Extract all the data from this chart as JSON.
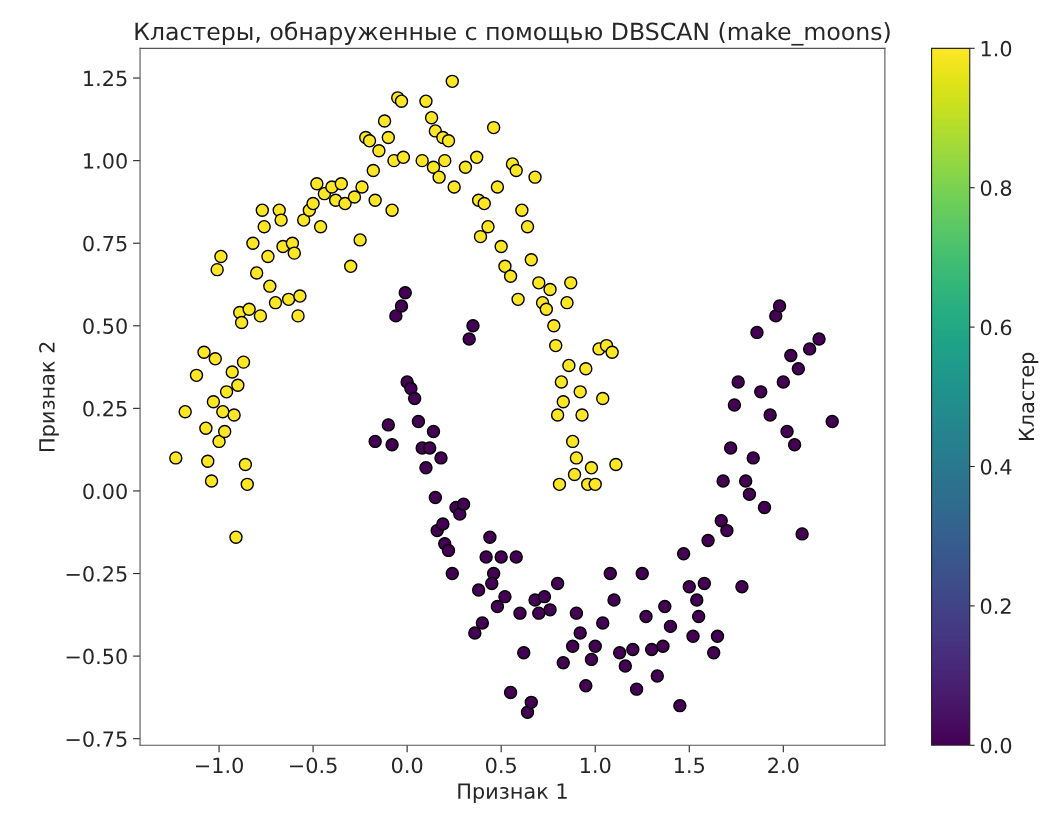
{
  "chart_data": {
    "type": "scatter",
    "title": "Кластеры, обнаруженные с помощью DBSCAN (make_moons)",
    "xlabel": "Признак 1",
    "ylabel": "Признак 2",
    "clabel": "Кластер",
    "xlim": [
      -1.42,
      2.54
    ],
    "ylim": [
      -0.77,
      1.34
    ],
    "xticks": [
      {
        "value": -1.0,
        "label": "−1.0"
      },
      {
        "value": -0.5,
        "label": "−0.5"
      },
      {
        "value": 0.0,
        "label": "0.0"
      },
      {
        "value": 0.5,
        "label": "0.5"
      },
      {
        "value": 1.0,
        "label": "1.0"
      },
      {
        "value": 1.5,
        "label": "1.5"
      },
      {
        "value": 2.0,
        "label": "2.0"
      }
    ],
    "yticks": [
      {
        "value": -0.75,
        "label": "−0.75"
      },
      {
        "value": -0.5,
        "label": "−0.50"
      },
      {
        "value": -0.25,
        "label": "−0.25"
      },
      {
        "value": 0.0,
        "label": "0.00"
      },
      {
        "value": 0.25,
        "label": "0.25"
      },
      {
        "value": 0.5,
        "label": "0.50"
      },
      {
        "value": 0.75,
        "label": "0.75"
      },
      {
        "value": 1.0,
        "label": "1.00"
      },
      {
        "value": 1.25,
        "label": "1.25"
      }
    ],
    "clim": [
      0,
      1
    ],
    "cticks": [
      {
        "value": 0,
        "label": "0.0"
      },
      {
        "value": 0.2,
        "label": "0.2"
      },
      {
        "value": 0.4,
        "label": "0.4"
      },
      {
        "value": 0.6,
        "label": "0.6"
      },
      {
        "value": 0.8,
        "label": "0.8"
      },
      {
        "value": 1,
        "label": "1.0"
      }
    ],
    "marker": "circle",
    "grid": false,
    "series": [
      {
        "x": [
          -1.23,
          -1.18,
          -1.12,
          -1.08,
          -1.07,
          -1.06,
          -1.04,
          -1.03,
          -1.02,
          -1.01,
          -0.99,
          -1.0,
          -0.98,
          -0.97,
          -0.96,
          -0.93,
          -0.92,
          -0.91,
          -0.9,
          -0.89,
          -0.88,
          -0.87,
          -0.86,
          -0.85,
          -0.84,
          -0.82,
          -0.8,
          -0.78,
          -0.77,
          -0.76,
          -0.74,
          -0.73,
          -0.7,
          -0.68,
          -0.67,
          -0.66,
          -0.63,
          -0.61,
          -0.6,
          -0.58,
          -0.57,
          -0.55,
          -0.52,
          -0.5,
          -0.48,
          -0.46,
          -0.44,
          -0.4,
          -0.38,
          -0.35,
          -0.33,
          -0.3,
          -0.28,
          -0.25,
          -0.24,
          -0.22,
          -0.2,
          -0.18,
          -0.17,
          -0.15,
          -0.12,
          -0.1,
          -0.08,
          -0.07,
          -0.05,
          -0.03,
          -0.02,
          0.08,
          0.1,
          0.13,
          0.14,
          0.15,
          0.17,
          0.19,
          0.2,
          0.22,
          0.24,
          0.25,
          0.31,
          0.37,
          0.38,
          0.39,
          0.41,
          0.43,
          0.46,
          0.48,
          0.5,
          0.52,
          0.55,
          0.56,
          0.58,
          0.59,
          0.61,
          0.64,
          0.66,
          0.68,
          0.7,
          0.72,
          0.74,
          0.76,
          0.78,
          0.79,
          0.8,
          0.81,
          0.82,
          0.83,
          0.85,
          0.86,
          0.87,
          0.88,
          0.89,
          0.9,
          0.92,
          0.93,
          0.95,
          0.96,
          0.98,
          1.0,
          1.02,
          1.04,
          1.06,
          1.09,
          1.11
        ],
        "values": [
          0.1,
          0.24,
          0.35,
          0.42,
          0.19,
          0.09,
          0.03,
          0.27,
          0.4,
          0.67,
          0.71,
          0.15,
          0.24,
          0.18,
          0.3,
          0.36,
          0.23,
          -0.14,
          0.32,
          0.54,
          0.51,
          0.39,
          0.08,
          0.02,
          0.55,
          0.75,
          0.66,
          0.53,
          0.85,
          0.8,
          0.71,
          0.62,
          0.57,
          0.85,
          0.82,
          0.74,
          0.58,
          0.75,
          0.72,
          0.53,
          0.59,
          0.82,
          0.85,
          0.87,
          0.93,
          0.8,
          0.9,
          0.92,
          0.88,
          0.93,
          0.87,
          0.68,
          0.89,
          0.76,
          0.92,
          1.07,
          1.06,
          0.97,
          0.88,
          1.03,
          1.12,
          1.07,
          0.85,
          1.0,
          1.19,
          1.18,
          1.01,
          1.0,
          1.18,
          1.13,
          0.98,
          1.09,
          0.95,
          1.07,
          1.0,
          1.06,
          1.24,
          0.92,
          0.98,
          1.01,
          0.88,
          0.77,
          0.87,
          0.8,
          1.1,
          0.92,
          0.74,
          0.68,
          0.65,
          0.99,
          0.97,
          0.58,
          0.85,
          0.8,
          0.7,
          0.95,
          0.63,
          0.57,
          0.55,
          0.61,
          0.5,
          0.44,
          0.23,
          0.02,
          0.33,
          0.27,
          0.57,
          0.38,
          0.63,
          0.15,
          0.05,
          0.1,
          0.3,
          0.23,
          0.37,
          0.02,
          0.07,
          0.02,
          0.43,
          0.28,
          0.44,
          0.42,
          0.08
        ],
        "cvalues": [
          1,
          1,
          1,
          1,
          1,
          1,
          1,
          1,
          1,
          1,
          1,
          1,
          1,
          1,
          1,
          1,
          1,
          1,
          1,
          1,
          1,
          1,
          1,
          1,
          1,
          1,
          1,
          1,
          1,
          1,
          1,
          1,
          1,
          1,
          1,
          1,
          1,
          1,
          1,
          1,
          1,
          1,
          1,
          1,
          1,
          1,
          1,
          1,
          1,
          1,
          1,
          1,
          1,
          1,
          1,
          1,
          1,
          1,
          1,
          1,
          1,
          1,
          1,
          1,
          1,
          1,
          1,
          1,
          1,
          1,
          1,
          1,
          1,
          1,
          1,
          1,
          1,
          1,
          1,
          1,
          1,
          1,
          1,
          1,
          1,
          1,
          1,
          1,
          1,
          1,
          1,
          1,
          1,
          1,
          1,
          1,
          1,
          1,
          1,
          1,
          1,
          1,
          1,
          1,
          1,
          1,
          1,
          1,
          1,
          1,
          1,
          1,
          1,
          1,
          1,
          1,
          1,
          1,
          1,
          1,
          1,
          1,
          1
        ]
      },
      {
        "x": [
          -0.17,
          -0.1,
          -0.08,
          -0.06,
          -0.03,
          -0.01,
          0.0,
          0.02,
          0.04,
          0.06,
          0.08,
          0.1,
          0.12,
          0.14,
          0.15,
          0.16,
          0.18,
          0.19,
          0.2,
          0.22,
          0.24,
          0.26,
          0.28,
          0.3,
          0.33,
          0.35,
          0.36,
          0.38,
          0.4,
          0.42,
          0.44,
          0.46,
          0.48,
          0.5,
          0.52,
          0.55,
          0.58,
          0.6,
          0.62,
          0.64,
          0.66,
          0.68,
          0.7,
          0.73,
          0.76,
          0.8,
          0.83,
          0.88,
          0.9,
          0.92,
          0.95,
          0.98,
          1.0,
          1.04,
          1.08,
          1.1,
          1.13,
          1.16,
          1.2,
          1.22,
          1.25,
          1.27,
          1.3,
          1.33,
          1.37,
          1.4,
          1.45,
          1.47,
          1.5,
          1.52,
          1.55,
          1.58,
          1.6,
          1.63,
          1.65,
          1.67,
          1.68,
          1.7,
          1.72,
          1.74,
          1.76,
          1.78,
          1.8,
          1.82,
          1.84,
          1.86,
          1.88,
          1.9,
          1.93,
          1.96,
          1.98,
          2.0,
          2.02,
          2.04,
          2.06,
          2.08,
          2.1,
          2.14,
          2.19,
          2.26,
          1.54,
          1.36,
          0.45
        ],
        "values": [
          0.15,
          0.2,
          0.14,
          0.53,
          0.56,
          0.6,
          0.33,
          0.31,
          0.28,
          0.21,
          0.13,
          0.07,
          0.13,
          0.18,
          -0.02,
          -0.12,
          0.1,
          -0.1,
          -0.16,
          -0.18,
          -0.25,
          -0.05,
          -0.07,
          -0.04,
          0.46,
          0.5,
          -0.43,
          -0.3,
          -0.4,
          -0.2,
          -0.14,
          -0.25,
          -0.35,
          -0.2,
          -0.32,
          -0.61,
          -0.2,
          -0.37,
          -0.49,
          -0.67,
          -0.64,
          -0.33,
          -0.37,
          -0.32,
          -0.36,
          -0.28,
          -0.52,
          -0.47,
          -0.37,
          -0.43,
          -0.59,
          -0.51,
          -0.47,
          -0.4,
          -0.25,
          -0.33,
          -0.49,
          -0.53,
          -0.48,
          -0.6,
          -0.25,
          -0.38,
          -0.48,
          -0.56,
          -0.35,
          -0.41,
          -0.65,
          -0.19,
          -0.29,
          -0.44,
          -0.38,
          -0.28,
          -0.15,
          -0.49,
          -0.44,
          -0.09,
          0.03,
          -0.12,
          0.13,
          0.26,
          0.33,
          -0.29,
          0.03,
          -0.01,
          0.1,
          0.48,
          0.3,
          -0.05,
          0.23,
          0.53,
          0.56,
          0.33,
          0.18,
          0.41,
          0.14,
          0.37,
          -0.13,
          0.43,
          0.46,
          0.21,
          -0.33,
          -0.47,
          -0.28
        ],
        "cvalues": [
          0,
          0,
          0,
          0,
          0,
          0,
          0,
          0,
          0,
          0,
          0,
          0,
          0,
          0,
          0,
          0,
          0,
          0,
          0,
          0,
          0,
          0,
          0,
          0,
          0,
          0,
          0,
          0,
          0,
          0,
          0,
          0,
          0,
          0,
          0,
          0,
          0,
          0,
          0,
          0,
          0,
          0,
          0,
          0,
          0,
          0,
          0,
          0,
          0,
          0,
          0,
          0,
          0,
          0,
          0,
          0,
          0,
          0,
          0,
          0,
          0,
          0,
          0,
          0,
          0,
          0,
          0,
          0,
          0,
          0,
          0,
          0,
          0,
          0,
          0,
          0,
          0,
          0,
          0,
          0,
          0,
          0,
          0,
          0,
          0,
          0,
          0,
          0,
          0,
          0,
          0,
          0,
          0,
          0,
          0,
          0,
          0,
          0,
          0,
          0,
          0,
          0,
          0
        ]
      }
    ]
  }
}
